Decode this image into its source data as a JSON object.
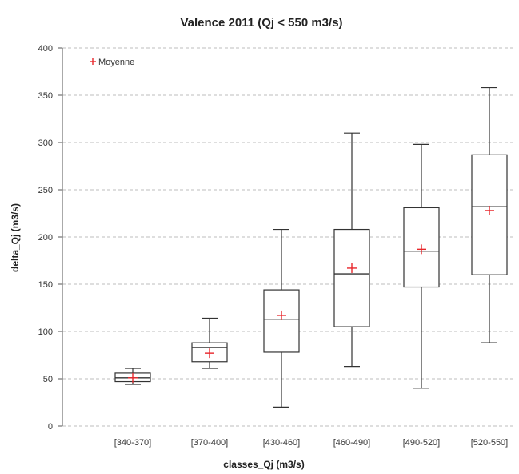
{
  "chart_data": {
    "type": "box",
    "title": "Valence 2011 (Qj < 550 m3/s)",
    "xlabel": "classes_Qj (m3/s)",
    "ylabel": "delta_Qj (m3/s)",
    "ylim": [
      0,
      400
    ],
    "yticks": [
      "0",
      "50",
      "100",
      "150",
      "200",
      "250",
      "300",
      "350",
      "400"
    ],
    "grid": "horizontal dashed",
    "legend": {
      "position": "top-left",
      "label": "Moyenne",
      "marker": "+"
    },
    "categories": [
      "[340-370]",
      "[370-400]",
      "[430-460]",
      "[460-490]",
      "[490-520]",
      "[520-550]"
    ],
    "boxes": [
      {
        "min": 44,
        "q1": 47,
        "median": 51,
        "q3": 56,
        "max": 61,
        "mean": 51
      },
      {
        "min": 61,
        "q1": 68,
        "median": 83,
        "q3": 88,
        "max": 114,
        "mean": 77
      },
      {
        "min": 20,
        "q1": 78,
        "median": 113,
        "q3": 144,
        "max": 208,
        "mean": 117
      },
      {
        "min": 63,
        "q1": 105,
        "median": 161,
        "q3": 208,
        "max": 310,
        "mean": 167
      },
      {
        "min": 40,
        "q1": 147,
        "median": 185,
        "q3": 231,
        "max": 298,
        "mean": 187
      },
      {
        "min": 88,
        "q1": 160,
        "median": 232,
        "q3": 287,
        "max": 358,
        "mean": 228
      }
    ],
    "colors": {
      "box": "#333333",
      "mean": "#e8262b",
      "grid": "#bdbdbd"
    }
  }
}
